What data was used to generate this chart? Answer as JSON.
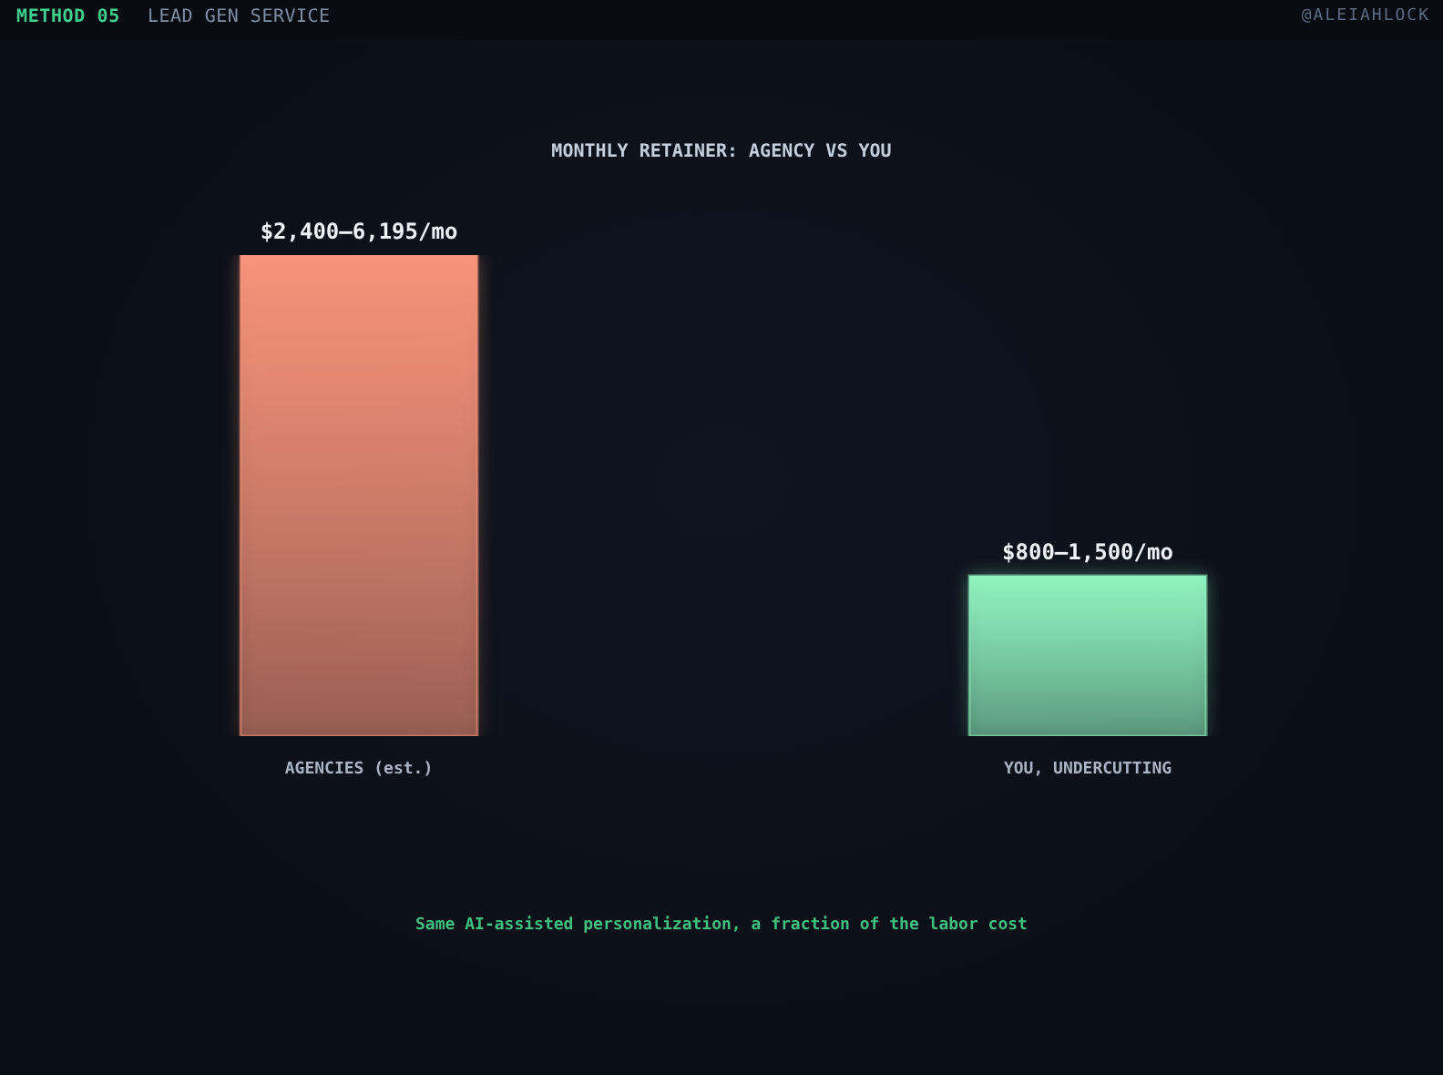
{
  "chart_data": {
    "type": "bar",
    "title": "MONTHLY RETAINER: AGENCY VS YOU",
    "categories": [
      "AGENCIES (est.)",
      "YOU, UNDERCUTTING"
    ],
    "values": [
      2400,
      800
    ],
    "colors": [
      "#f7937a",
      "#90f3bf"
    ],
    "tick_labels": "x",
    "value_labels": [
      "$2,400–6,195/mo",
      "$800–1,500/mo"
    ],
    "annotations": [
      "METHOD 05",
      "LEAD GEN SERVICE",
      "@ALEIAHLOCK",
      "Same AI-assisted personalization, a fraction of the labor cost"
    ]
  }
}
